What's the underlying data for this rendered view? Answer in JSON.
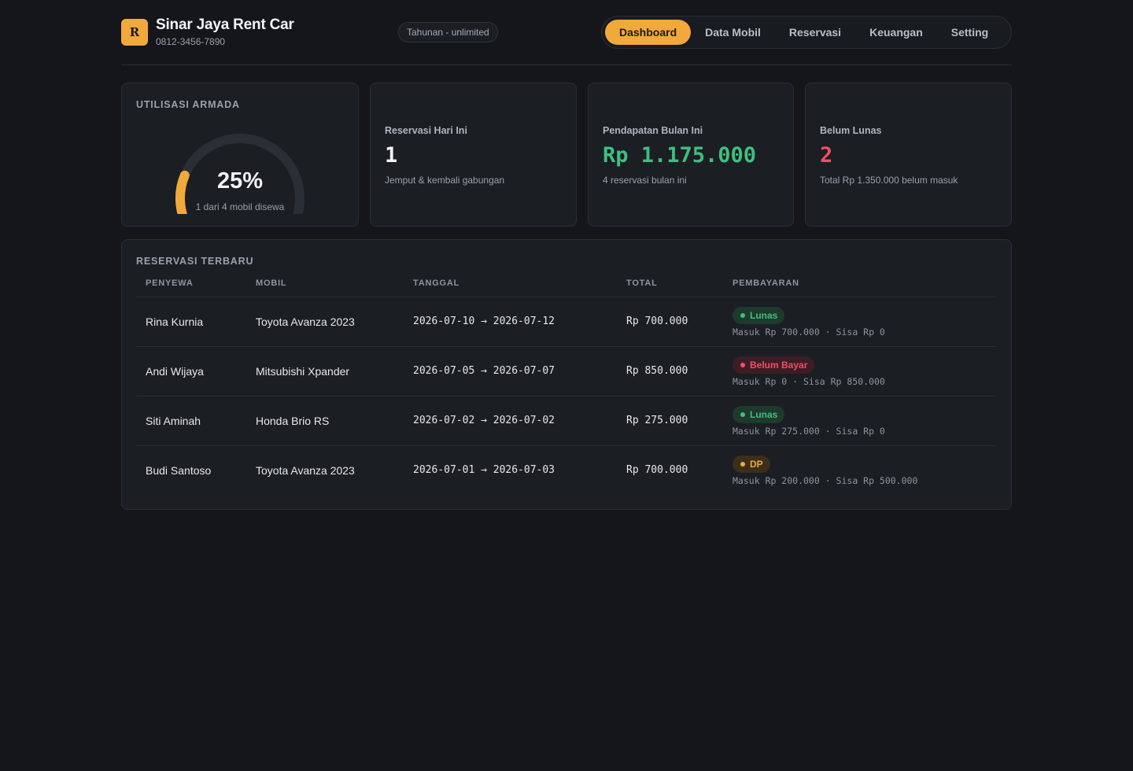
{
  "header": {
    "logo_letter": "R",
    "brand_name": "Sinar Jaya Rent Car",
    "phone": "0812-3456-7890",
    "plan": "Tahunan - unlimited",
    "nav": [
      {
        "label": "Dashboard",
        "active": true
      },
      {
        "label": "Data Mobil",
        "active": false
      },
      {
        "label": "Reservasi",
        "active": false
      },
      {
        "label": "Keuangan",
        "active": false
      },
      {
        "label": "Setting",
        "active": false
      }
    ]
  },
  "utilization": {
    "title": "UTILISASI ARMADA",
    "percent_label": "25%",
    "fraction": 0.25,
    "subtitle": "1 dari 4 mobil disewa",
    "color": "#f2a93b",
    "track_color": "#2a2e35"
  },
  "stats": [
    {
      "label": "Reservasi Hari Ini",
      "value": "1",
      "note": "Jemput & kembali gabungan",
      "color": "#f1f2f4"
    },
    {
      "label": "Pendapatan Bulan Ini",
      "value": "Rp 1.175.000",
      "note": "4 reservasi bulan ini",
      "color": "#3fbf7f"
    },
    {
      "label": "Belum Lunas",
      "value": "2",
      "note": "Total Rp 1.350.000 belum masuk",
      "color": "#ef4f68"
    }
  ],
  "reservations": {
    "title": "RESERVASI TERBARU",
    "columns": [
      "PENYEWA",
      "MOBIL",
      "TANGGAL",
      "TOTAL",
      "PEMBAYARAN"
    ],
    "rows": [
      {
        "renter": "Rina Kurnia",
        "car": "Toyota Avanza 2023",
        "dates": "2026-07-10 → 2026-07-12",
        "total": "Rp 700.000",
        "status": "Lunas",
        "status_type": "paid",
        "detail": "Masuk Rp 700.000 · Sisa Rp 0"
      },
      {
        "renter": "Andi Wijaya",
        "car": "Mitsubishi Xpander",
        "dates": "2026-07-05 → 2026-07-07",
        "total": "Rp 850.000",
        "status": "Belum Bayar",
        "status_type": "unpaid",
        "detail": "Masuk Rp 0 · Sisa Rp 850.000"
      },
      {
        "renter": "Siti Aminah",
        "car": "Honda Brio RS",
        "dates": "2026-07-02 → 2026-07-02",
        "total": "Rp 275.000",
        "status": "Lunas",
        "status_type": "paid",
        "detail": "Masuk Rp 275.000 · Sisa Rp 0"
      },
      {
        "renter": "Budi Santoso",
        "car": "Toyota Avanza 2023",
        "dates": "2026-07-01 → 2026-07-03",
        "total": "Rp 700.000",
        "status": "DP",
        "status_type": "partial",
        "detail": "Masuk Rp 200.000 · Sisa Rp 500.000"
      }
    ],
    "status_colors": {
      "paid": {
        "fg": "#3fbf7f",
        "bg": "#1d3a2c"
      },
      "unpaid": {
        "fg": "#ef4f68",
        "bg": "#3d1d25"
      },
      "partial": {
        "fg": "#f2a93b",
        "bg": "#3b2e1a"
      }
    }
  }
}
